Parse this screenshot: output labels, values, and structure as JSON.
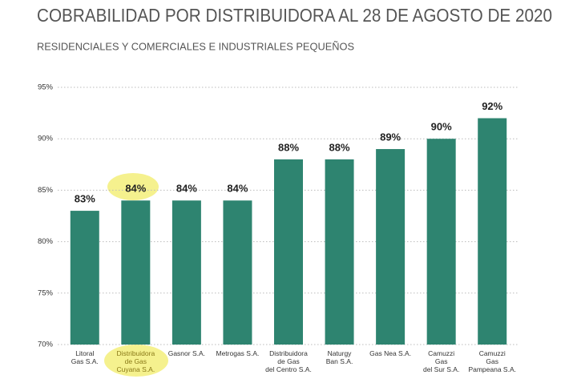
{
  "chart_data": {
    "type": "bar",
    "title": "COBRABILIDAD POR DISTRIBUIDORA AL 28 DE AGOSTO DE 2020",
    "subtitle": "RESIDENCIALES Y COMERCIALES E INDUSTRIALES PEQUEÑOS",
    "categories": [
      "Litoral\nGas S.A.",
      "Distribuidora\nde Gas\nCuyana S.A.",
      "Gasnor S.A.",
      "Metrogas S.A.",
      "Distribuidora\nde Gas\ndel Centro S.A.",
      "Naturgy\nBan S.A.",
      "Gas Nea S.A.",
      "Camuzzi\nGas\ndel Sur S.A.",
      "Camuzzi\nGas\nPampeana S.A."
    ],
    "values": [
      83,
      84,
      84,
      84,
      88,
      88,
      89,
      90,
      92
    ],
    "value_labels": [
      "83%",
      "84%",
      "84%",
      "84%",
      "88%",
      "88%",
      "89%",
      "90%",
      "92%"
    ],
    "color": "#2e8470",
    "ylim": [
      70,
      95
    ],
    "yticks": [
      {
        "value": 70,
        "label": "70%"
      },
      {
        "value": 75,
        "label": "75%"
      },
      {
        "value": 80,
        "label": "80%"
      },
      {
        "value": 85,
        "label": "85%"
      },
      {
        "value": 90,
        "label": "90%"
      },
      {
        "value": 95,
        "label": "95%"
      }
    ],
    "grid": true
  }
}
